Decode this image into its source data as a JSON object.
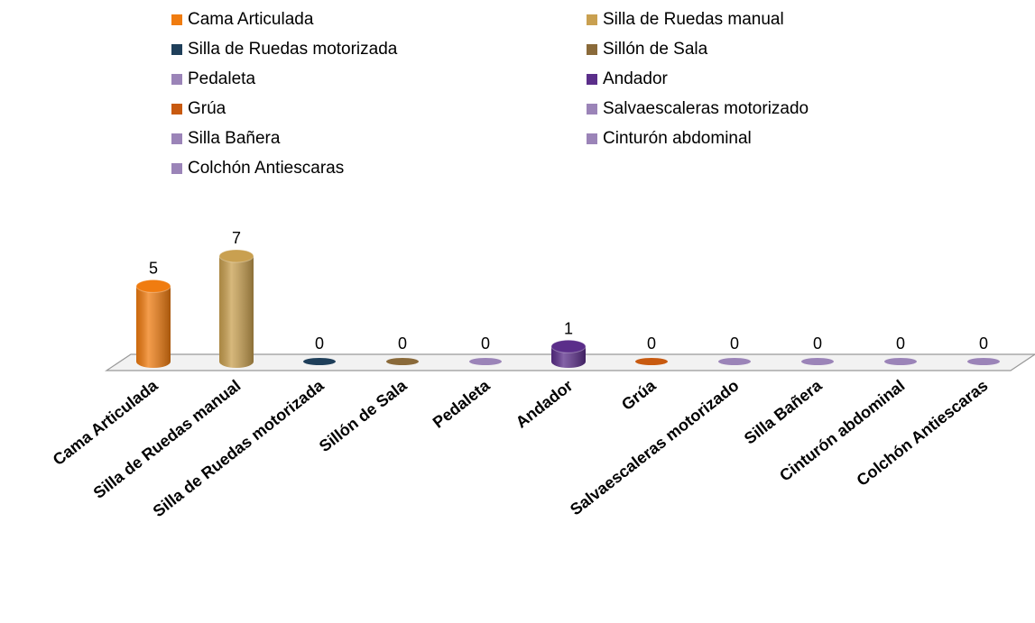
{
  "chart_data": {
    "type": "bar3d",
    "categories": [
      "Cama Articulada",
      "Silla de Ruedas manual",
      "Silla de Ruedas motorizada",
      "Sillón de Sala",
      "Pedaleta",
      "Andador",
      "Grúa",
      "Salvaescaleras motorizado",
      "Silla Bañera",
      "Cinturón abdominal",
      "Colchón Antiescaras"
    ],
    "values": [
      5,
      7,
      0,
      0,
      0,
      1,
      0,
      0,
      0,
      0,
      0
    ],
    "colors": [
      "#f07c10",
      "#c9a050",
      "#1f3f5a",
      "#8a6a3a",
      "#9b84b8",
      "#5b2e8a",
      "#c85a10",
      "#9b84b8",
      "#9b84b8",
      "#9b84b8",
      "#9b84b8"
    ],
    "legend": "top"
  }
}
